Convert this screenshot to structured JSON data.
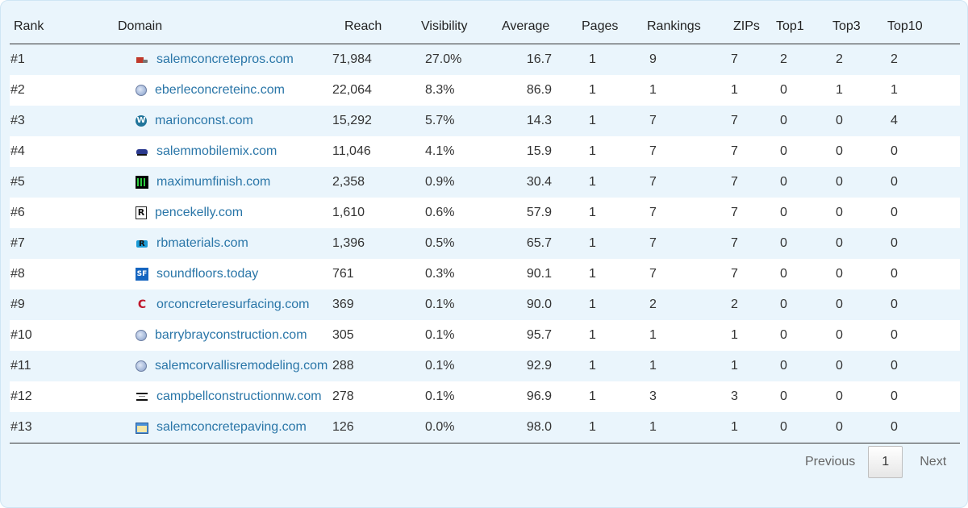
{
  "table": {
    "headers": {
      "rank": "Rank",
      "domain": "Domain",
      "reach": "Reach",
      "visibility": "Visibility",
      "average": "Average",
      "pages": "Pages",
      "rankings": "Rankings",
      "zips": "ZIPs",
      "top1": "Top1",
      "top3": "Top3",
      "top10": "Top10"
    },
    "rows": [
      {
        "rank": "#1",
        "icon": "truck-icon",
        "domain": "salemconcretepros.com",
        "reach": "71,984",
        "visibility": "27.0%",
        "average": "16.7",
        "pages": "1",
        "rankings": "9",
        "zips": "7",
        "top1": "2",
        "top3": "2",
        "top10": "2"
      },
      {
        "rank": "#2",
        "icon": "globe-icon",
        "domain": "eberleconcreteinc.com",
        "reach": "22,064",
        "visibility": "8.3%",
        "average": "86.9",
        "pages": "1",
        "rankings": "1",
        "zips": "1",
        "top1": "0",
        "top3": "1",
        "top10": "1"
      },
      {
        "rank": "#3",
        "icon": "wordpress-icon",
        "domain": "marionconst.com",
        "reach": "15,292",
        "visibility": "5.7%",
        "average": "14.3",
        "pages": "1",
        "rankings": "7",
        "zips": "7",
        "top1": "0",
        "top3": "0",
        "top10": "4"
      },
      {
        "rank": "#4",
        "icon": "mixer-truck-icon",
        "domain": "salemmobilemix.com",
        "reach": "11,046",
        "visibility": "4.1%",
        "average": "15.9",
        "pages": "1",
        "rankings": "7",
        "zips": "7",
        "top1": "0",
        "top3": "0",
        "top10": "0"
      },
      {
        "rank": "#5",
        "icon": "waveform-icon",
        "domain": "maximumfinish.com",
        "reach": "2,358",
        "visibility": "0.9%",
        "average": "30.4",
        "pages": "1",
        "rankings": "7",
        "zips": "7",
        "top1": "0",
        "top3": "0",
        "top10": "0"
      },
      {
        "rank": "#6",
        "icon": "letter-r-icon",
        "domain": "pencekelly.com",
        "reach": "1,610",
        "visibility": "0.6%",
        "average": "57.9",
        "pages": "1",
        "rankings": "7",
        "zips": "7",
        "top1": "0",
        "top3": "0",
        "top10": "0"
      },
      {
        "rank": "#7",
        "icon": "rb-logo-icon",
        "domain": "rbmaterials.com",
        "reach": "1,396",
        "visibility": "0.5%",
        "average": "65.7",
        "pages": "1",
        "rankings": "7",
        "zips": "7",
        "top1": "0",
        "top3": "0",
        "top10": "0"
      },
      {
        "rank": "#8",
        "icon": "sf-logo-icon",
        "domain": "soundfloors.today",
        "reach": "761",
        "visibility": "0.3%",
        "average": "90.1",
        "pages": "1",
        "rankings": "7",
        "zips": "7",
        "top1": "0",
        "top3": "0",
        "top10": "0"
      },
      {
        "rank": "#9",
        "icon": "letter-c-icon",
        "domain": "orconcreteresurfacing.com",
        "reach": "369",
        "visibility": "0.1%",
        "average": "90.0",
        "pages": "1",
        "rankings": "2",
        "zips": "2",
        "top1": "0",
        "top3": "0",
        "top10": "0"
      },
      {
        "rank": "#10",
        "icon": "globe-icon",
        "domain": "barrybrayconstruction.com",
        "reach": "305",
        "visibility": "0.1%",
        "average": "95.7",
        "pages": "1",
        "rankings": "1",
        "zips": "1",
        "top1": "0",
        "top3": "0",
        "top10": "0"
      },
      {
        "rank": "#11",
        "icon": "globe-icon",
        "domain": "salemcorvallisremodeling.com",
        "reach": "288",
        "visibility": "0.1%",
        "average": "92.9",
        "pages": "1",
        "rankings": "1",
        "zips": "1",
        "top1": "0",
        "top3": "0",
        "top10": "0"
      },
      {
        "rank": "#12",
        "icon": "bars-logo-icon",
        "domain": "campbellconstructionnw.com",
        "reach": "278",
        "visibility": "0.1%",
        "average": "96.9",
        "pages": "1",
        "rankings": "3",
        "zips": "3",
        "top1": "0",
        "top3": "0",
        "top10": "0"
      },
      {
        "rank": "#13",
        "icon": "window-icon",
        "domain": "salemconcretepaving.com",
        "reach": "126",
        "visibility": "0.0%",
        "average": "98.0",
        "pages": "1",
        "rankings": "1",
        "zips": "1",
        "top1": "0",
        "top3": "0",
        "top10": "0"
      }
    ]
  },
  "pagination": {
    "previous_label": "Previous",
    "current_page": "1",
    "next_label": "Next"
  },
  "colors": {
    "panel_background": "#eaf5fc",
    "row_alt_background": "#ffffff",
    "link": "#2a76a8",
    "text": "#333333"
  }
}
